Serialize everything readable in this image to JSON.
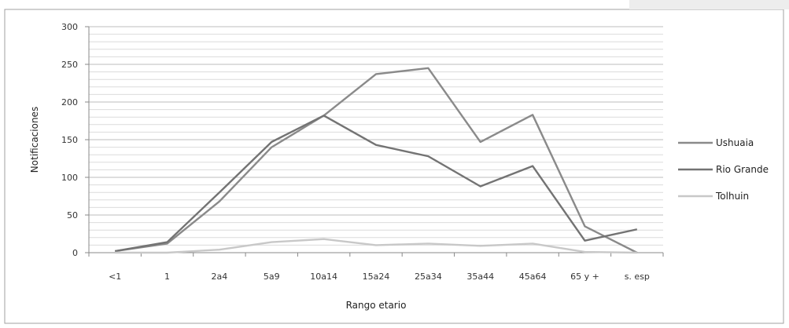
{
  "chart_data": {
    "type": "line",
    "categories": [
      "<1",
      "1",
      "2a4",
      "5a9",
      "10a14",
      "15a24",
      "25a34",
      "35a44",
      "45a64",
      "65 y +",
      "s. esp"
    ],
    "series": [
      {
        "name": "Ushuaia",
        "color": "#8a8a8a",
        "values": [
          2,
          12,
          68,
          140,
          182,
          237,
          245,
          147,
          183,
          35,
          0
        ]
      },
      {
        "name": "Rio Grande",
        "color": "#737373",
        "values": [
          2,
          14,
          80,
          147,
          182,
          143,
          128,
          88,
          115,
          16,
          31
        ]
      },
      {
        "name": "Tolhuin",
        "color": "#c8c8c8",
        "values": [
          0,
          0,
          4,
          14,
          18,
          10,
          12,
          9,
          12,
          1,
          0
        ]
      }
    ],
    "title": "",
    "xlabel": "Rango etario",
    "ylabel": "Notificaciones",
    "ylim": [
      0,
      300
    ],
    "yticks": [
      0,
      50,
      100,
      150,
      200,
      250,
      300
    ],
    "grid": true,
    "legend_position": "right"
  }
}
